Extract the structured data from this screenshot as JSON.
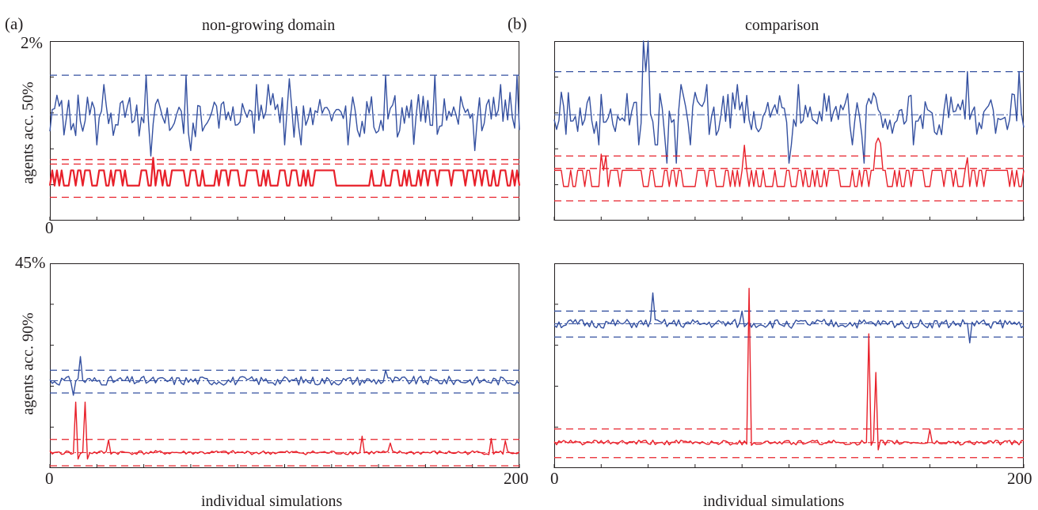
{
  "colors": {
    "blue": "#3450a0",
    "red": "#e8202a",
    "axis": "#231f20"
  },
  "figure": {
    "panel_a_label": "(a)",
    "panel_b_label": "(b)",
    "panel_a_title": "non-growing domain",
    "panel_b_title": "comparison",
    "top_ylabel": "agents acc.  50%",
    "bottom_ylabel": "agents acc.  90%",
    "top_ymax_label": "2%",
    "bottom_ymax_label": "45%",
    "top_x0_label": "0",
    "bottom_left_x0": "0",
    "bottom_left_x200": "200",
    "bottom_right_x0": "0",
    "bottom_right_x200": "200",
    "xlabel_left": "individual simulations",
    "xlabel_right": "individual simulations"
  },
  "chart_data": [
    {
      "id": "a-top",
      "type": "line",
      "title": "non-growing domain",
      "xlabel": "",
      "ylabel": "agents acc.  50%",
      "xlim": [
        0,
        200
      ],
      "ylim": [
        0,
        2
      ],
      "ymax_label": "2%",
      "series": [
        {
          "color": "blue",
          "style": "jagged",
          "seed": 11,
          "mean": 1.18,
          "spread": 0.14,
          "min": 0.78,
          "max": 1.62,
          "spikes": [
            [
              41,
              1.62
            ],
            [
              43,
              0.72
            ],
            [
              58,
              1.62
            ],
            [
              60,
              0.78
            ],
            [
              102,
              1.58
            ],
            [
              143,
              1.62
            ],
            [
              155,
              0.85
            ],
            [
              164,
              1.62
            ],
            [
              181,
              0.78
            ],
            [
              199,
              1.62
            ]
          ],
          "mean_line": 1.18,
          "ci": [
            1.62
          ]
        },
        {
          "color": "red",
          "style": "twolevel",
          "seed": 3,
          "low": 0.39,
          "high": 0.56,
          "spikes": [
            [
              44,
              0.7
            ]
          ],
          "ci": [
            0.26,
            0.68,
            0.63
          ]
        }
      ]
    },
    {
      "id": "b-top",
      "type": "line",
      "title": "comparison",
      "xlim": [
        0,
        200
      ],
      "ylim": [
        0,
        2
      ],
      "series": [
        {
          "color": "blue",
          "style": "jagged",
          "seed": 21,
          "mean": 1.18,
          "spread": 0.14,
          "min": 0.64,
          "max": 2.0,
          "spikes": [
            [
              38,
              2.0
            ],
            [
              39,
              1.66
            ],
            [
              40,
              2.0
            ],
            [
              48,
              0.64
            ],
            [
              52,
              0.64
            ],
            [
              100,
              0.64
            ],
            [
              132,
              0.64
            ],
            [
              176,
              1.66
            ],
            [
              198,
              1.66
            ]
          ],
          "mean_line": 1.18,
          "ci": [
            1.66
          ]
        },
        {
          "color": "red",
          "style": "twolevel",
          "seed": 5,
          "low": 0.38,
          "high": 0.56,
          "spikes": [
            [
              20,
              0.74
            ],
            [
              22,
              0.72
            ],
            [
              81,
              0.84
            ],
            [
              137,
              0.86
            ],
            [
              138,
              0.92
            ],
            [
              139,
              0.86
            ],
            [
              176,
              0.7
            ]
          ],
          "ci": [
            0.22,
            0.72,
            0.58
          ]
        }
      ]
    },
    {
      "id": "a-bottom",
      "type": "line",
      "xlabel": "individual simulations",
      "ylabel": "agents acc.  90%",
      "xlim": [
        0,
        200
      ],
      "ylim": [
        0,
        45
      ],
      "ymax_label": "45%",
      "xticks": [
        0,
        200
      ],
      "series": [
        {
          "color": "blue",
          "style": "noise",
          "seed": 31,
          "mean": 19.2,
          "spread": 1.0,
          "spikes": [
            [
              13,
              24.5
            ],
            [
              10,
              16.0
            ],
            [
              143,
              21.5
            ]
          ],
          "mean_line": 19.2,
          "ci": [
            21.5,
            16.5
          ]
        },
        {
          "color": "red",
          "style": "noise",
          "seed": 41,
          "mean": 3.4,
          "spread": 0.45,
          "spikes": [
            [
              11,
              14.5
            ],
            [
              12,
              2.0
            ],
            [
              15,
              14.5
            ],
            [
              16,
              2.0
            ],
            [
              25,
              6.2
            ],
            [
              133,
              7.0
            ],
            [
              145,
              5.5
            ],
            [
              188,
              6.5
            ],
            [
              194,
              6.0
            ]
          ],
          "mean_line": 3.4,
          "ci": [
            6.3,
            0.5
          ]
        }
      ]
    },
    {
      "id": "b-bottom",
      "type": "line",
      "xlabel": "individual simulations",
      "xlim": [
        0,
        200
      ],
      "ylim": [
        0,
        45
      ],
      "xticks": [
        0,
        200
      ],
      "series": [
        {
          "color": "blue",
          "style": "noise",
          "seed": 51,
          "mean": 31.7,
          "spread": 1.0,
          "spikes": [
            [
              42,
              38.5
            ],
            [
              80,
              34.5
            ],
            [
              177,
              27.5
            ]
          ],
          "mean_line": 31.7,
          "ci": [
            34.5,
            28.8
          ]
        },
        {
          "color": "red",
          "style": "noise",
          "seed": 61,
          "mean": 5.6,
          "spread": 0.55,
          "spikes": [
            [
              83,
              39.5
            ],
            [
              84,
              5.0
            ],
            [
              134,
              29.5
            ],
            [
              135,
              5.0
            ],
            [
              137,
              21.0
            ],
            [
              138,
              4.0
            ],
            [
              160,
              8.5
            ]
          ],
          "mean_line": 5.6,
          "ci": [
            8.6,
            2.3
          ]
        }
      ]
    }
  ]
}
